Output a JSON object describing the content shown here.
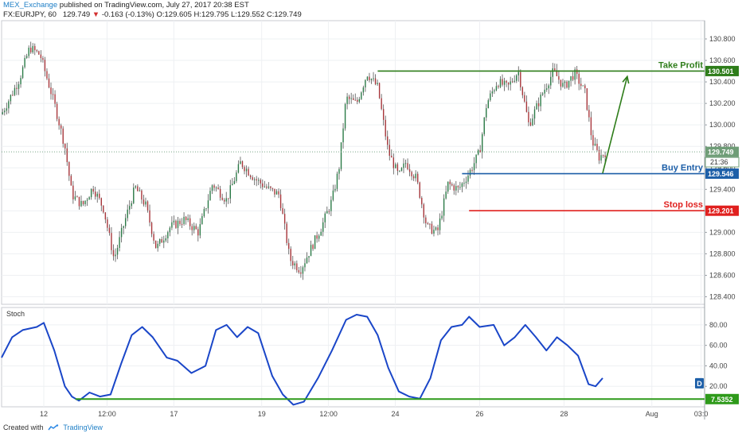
{
  "header": {
    "author": "MEX_Exchange",
    "published": "published on TradingView.com, July 27, 2017 20:38 EST",
    "symbol": "FX:EURJPY, 60",
    "last": "129.749",
    "change": "-0.163 (-0.13%)",
    "ohlc": "O:129.605 H:129.795 L:129.552 C:129.749"
  },
  "footer": {
    "created_with": "Created with",
    "brand": "TradingView"
  },
  "chart_data": [
    {
      "type": "candlestick",
      "title": "FX:EURJPY, 60",
      "ylim": [
        128.33,
        130.97
      ],
      "y_ticks": [
        128.4,
        128.6,
        128.8,
        129.0,
        129.2,
        129.4,
        129.6,
        129.8,
        130.0,
        130.2,
        130.4,
        130.6,
        130.8
      ],
      "x_ticks": [
        "12",
        "12:00",
        "17",
        "19",
        "12:00",
        "24",
        "26",
        "28",
        "Aug",
        "03:0"
      ],
      "price_path": [
        {
          "t": 0,
          "p": 130.1
        },
        {
          "t": 0.025,
          "p": 130.42
        },
        {
          "t": 0.04,
          "p": 130.72
        },
        {
          "t": 0.055,
          "p": 130.65
        },
        {
          "t": 0.075,
          "p": 130.2
        },
        {
          "t": 0.09,
          "p": 129.8
        },
        {
          "t": 0.1,
          "p": 129.35
        },
        {
          "t": 0.115,
          "p": 129.25
        },
        {
          "t": 0.13,
          "p": 129.42
        },
        {
          "t": 0.145,
          "p": 129.22
        },
        {
          "t": 0.16,
          "p": 128.75
        },
        {
          "t": 0.175,
          "p": 129.1
        },
        {
          "t": 0.19,
          "p": 129.42
        },
        {
          "t": 0.205,
          "p": 129.25
        },
        {
          "t": 0.22,
          "p": 128.85
        },
        {
          "t": 0.24,
          "p": 129.05
        },
        {
          "t": 0.26,
          "p": 129.12
        },
        {
          "t": 0.28,
          "p": 129.0
        },
        {
          "t": 0.3,
          "p": 129.45
        },
        {
          "t": 0.32,
          "p": 129.3
        },
        {
          "t": 0.34,
          "p": 129.65
        },
        {
          "t": 0.36,
          "p": 129.5
        },
        {
          "t": 0.38,
          "p": 129.4
        },
        {
          "t": 0.395,
          "p": 129.35
        },
        {
          "t": 0.41,
          "p": 128.75
        },
        {
          "t": 0.425,
          "p": 128.65
        },
        {
          "t": 0.44,
          "p": 128.85
        },
        {
          "t": 0.455,
          "p": 129.05
        },
        {
          "t": 0.47,
          "p": 129.3
        },
        {
          "t": 0.48,
          "p": 129.6
        },
        {
          "t": 0.49,
          "p": 130.25
        },
        {
          "t": 0.505,
          "p": 130.2
        },
        {
          "t": 0.52,
          "p": 130.48
        },
        {
          "t": 0.535,
          "p": 130.35
        },
        {
          "t": 0.55,
          "p": 129.75
        },
        {
          "t": 0.565,
          "p": 129.52
        },
        {
          "t": 0.575,
          "p": 129.65
        },
        {
          "t": 0.59,
          "p": 129.5
        },
        {
          "t": 0.605,
          "p": 129.05
        },
        {
          "t": 0.62,
          "p": 129.0
        },
        {
          "t": 0.635,
          "p": 129.45
        },
        {
          "t": 0.65,
          "p": 129.4
        },
        {
          "t": 0.665,
          "p": 129.55
        },
        {
          "t": 0.68,
          "p": 129.75
        },
        {
          "t": 0.69,
          "p": 130.2
        },
        {
          "t": 0.705,
          "p": 130.4
        },
        {
          "t": 0.72,
          "p": 130.35
        },
        {
          "t": 0.735,
          "p": 130.5
        },
        {
          "t": 0.75,
          "p": 130.0
        },
        {
          "t": 0.77,
          "p": 130.3
        },
        {
          "t": 0.785,
          "p": 130.5
        },
        {
          "t": 0.8,
          "p": 130.35
        },
        {
          "t": 0.815,
          "p": 130.48
        },
        {
          "t": 0.83,
          "p": 130.3
        },
        {
          "t": 0.84,
          "p": 129.85
        },
        {
          "t": 0.85,
          "p": 129.7
        },
        {
          "t": 0.86,
          "p": 129.75
        }
      ],
      "levels": [
        {
          "name": "Take Profit",
          "value": 130.501,
          "color": "#2e7d1a"
        },
        {
          "name": "Buy Entry",
          "value": 129.546,
          "color": "#1d5fa8"
        },
        {
          "name": "Stop loss",
          "value": 129.201,
          "color": "#e0201e"
        }
      ],
      "last_price": 129.749,
      "countdown": "21:36",
      "grid": true
    },
    {
      "type": "line",
      "title": "Stoch",
      "ylim": [
        0,
        97
      ],
      "y_ticks": [
        20,
        40,
        60,
        80
      ],
      "series": [
        {
          "color": "#1a46c8",
          "values": [
            {
              "t": 0,
              "v": 48
            },
            {
              "t": 0.015,
              "v": 68
            },
            {
              "t": 0.03,
              "v": 75
            },
            {
              "t": 0.05,
              "v": 78
            },
            {
              "t": 0.06,
              "v": 82
            },
            {
              "t": 0.075,
              "v": 55
            },
            {
              "t": 0.09,
              "v": 20
            },
            {
              "t": 0.1,
              "v": 10
            },
            {
              "t": 0.11,
              "v": 6
            },
            {
              "t": 0.125,
              "v": 14
            },
            {
              "t": 0.14,
              "v": 10
            },
            {
              "t": 0.155,
              "v": 12
            },
            {
              "t": 0.17,
              "v": 42
            },
            {
              "t": 0.185,
              "v": 70
            },
            {
              "t": 0.2,
              "v": 78
            },
            {
              "t": 0.215,
              "v": 68
            },
            {
              "t": 0.235,
              "v": 48
            },
            {
              "t": 0.25,
              "v": 45
            },
            {
              "t": 0.27,
              "v": 33
            },
            {
              "t": 0.29,
              "v": 40
            },
            {
              "t": 0.305,
              "v": 75
            },
            {
              "t": 0.32,
              "v": 80
            },
            {
              "t": 0.335,
              "v": 68
            },
            {
              "t": 0.35,
              "v": 78
            },
            {
              "t": 0.365,
              "v": 72
            },
            {
              "t": 0.385,
              "v": 30
            },
            {
              "t": 0.4,
              "v": 12
            },
            {
              "t": 0.415,
              "v": 2
            },
            {
              "t": 0.43,
              "v": 5
            },
            {
              "t": 0.45,
              "v": 28
            },
            {
              "t": 0.47,
              "v": 55
            },
            {
              "t": 0.49,
              "v": 85
            },
            {
              "t": 0.505,
              "v": 90
            },
            {
              "t": 0.52,
              "v": 88
            },
            {
              "t": 0.535,
              "v": 70
            },
            {
              "t": 0.55,
              "v": 38
            },
            {
              "t": 0.565,
              "v": 15
            },
            {
              "t": 0.58,
              "v": 10
            },
            {
              "t": 0.595,
              "v": 8
            },
            {
              "t": 0.61,
              "v": 28
            },
            {
              "t": 0.625,
              "v": 65
            },
            {
              "t": 0.64,
              "v": 78
            },
            {
              "t": 0.655,
              "v": 80
            },
            {
              "t": 0.665,
              "v": 88
            },
            {
              "t": 0.68,
              "v": 78
            },
            {
              "t": 0.7,
              "v": 80
            },
            {
              "t": 0.715,
              "v": 60
            },
            {
              "t": 0.73,
              "v": 68
            },
            {
              "t": 0.745,
              "v": 80
            },
            {
              "t": 0.76,
              "v": 68
            },
            {
              "t": 0.775,
              "v": 55
            },
            {
              "t": 0.79,
              "v": 68
            },
            {
              "t": 0.805,
              "v": 60
            },
            {
              "t": 0.82,
              "v": 50
            },
            {
              "t": 0.835,
              "v": 22
            },
            {
              "t": 0.845,
              "v": 20
            },
            {
              "t": 0.855,
              "v": 28
            }
          ]
        }
      ],
      "level": 7.5352,
      "level_color": "#2e9a1a",
      "badge": "D",
      "grid": true
    }
  ]
}
